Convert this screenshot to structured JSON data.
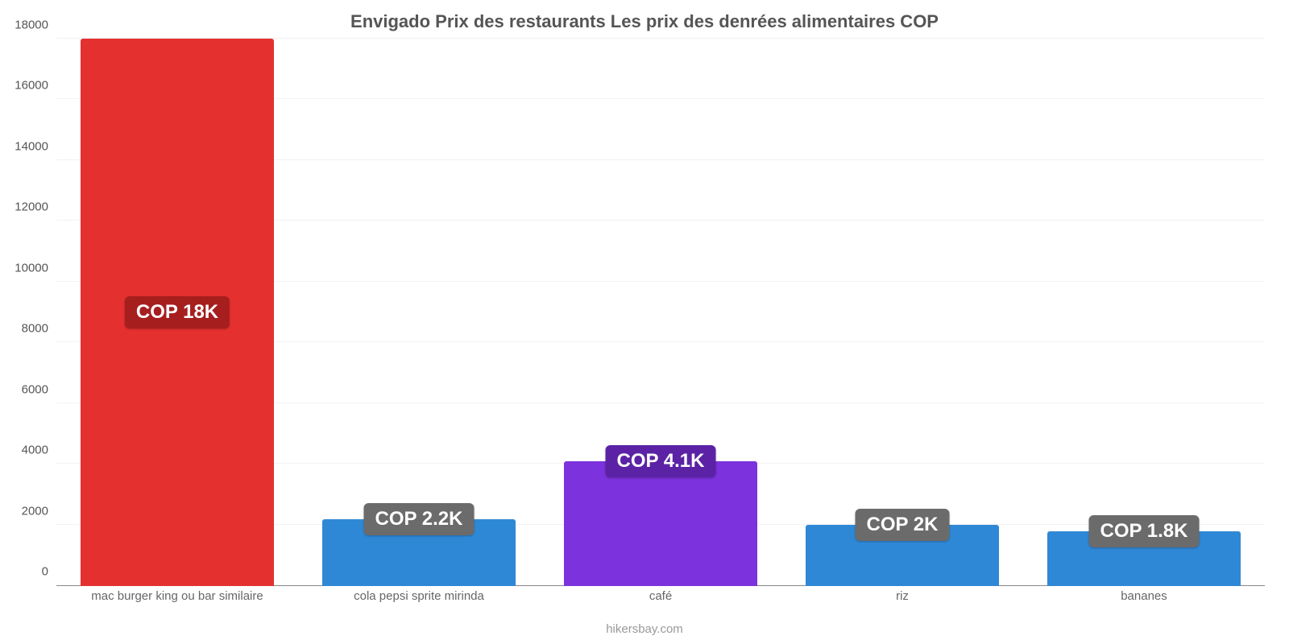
{
  "chart": {
    "type": "bar",
    "title": "Envigado Prix des restaurants Les prix des denrées alimentaires COP",
    "title_fontsize": 22,
    "title_color": "#555555",
    "background_color": "#ffffff",
    "grid_color": "#f2f2f2",
    "axis_color": "#888888",
    "ylim": [
      0,
      18000
    ],
    "ytick_step": 2000,
    "ytick_labels": [
      "0",
      "2000",
      "4000",
      "6000",
      "8000",
      "10000",
      "12000",
      "14000",
      "16000",
      "18000"
    ],
    "tick_fontsize": 15,
    "tick_color": "#555555",
    "x_label_color": "#666666",
    "x_label_fontsize": 15,
    "value_badge_fontsize": 24,
    "value_badge_radius": 6,
    "bar_width_pct": 80,
    "categories": [
      "mac burger king ou bar similaire",
      "cola pepsi sprite mirinda",
      "café",
      "riz",
      "bananes"
    ],
    "values": [
      18000,
      2200,
      4100,
      2000,
      1800
    ],
    "value_labels": [
      "COP 18K",
      "COP 2.2K",
      "COP 4.1K",
      "COP 2K",
      "COP 1.8K"
    ],
    "bar_colors": [
      "#e53030",
      "#2f88d6",
      "#7c32dc",
      "#2f88d6",
      "#2f88d6"
    ],
    "badge_colors": [
      "#a61e1e",
      "#6b6b6b",
      "#5b22a6",
      "#6b6b6b",
      "#6b6b6b"
    ],
    "badge_positions": [
      "middle",
      "top",
      "top",
      "top",
      "top"
    ],
    "source_label": "hikersbay.com",
    "source_color": "#999999",
    "source_fontsize": 15
  }
}
